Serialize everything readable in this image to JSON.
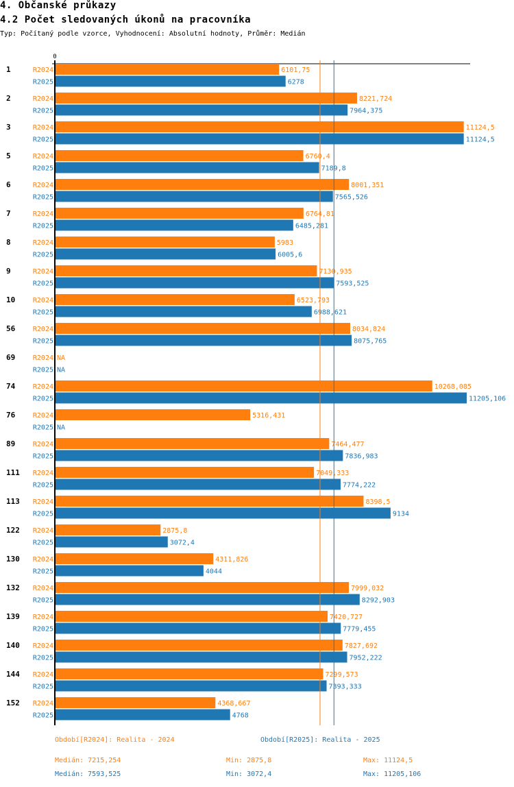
{
  "header": {
    "section_title": "4. Občanské průkazy",
    "chart_title": "4.2 Počet sledovaných úkonů na pracovníka",
    "subtitle": "Typ: Počítaný podle vzorce, Vyhodnocení: Absolutní hodnoty, Průměr: Medián"
  },
  "colors": {
    "R2024": "#ff7f0e",
    "R2025": "#1f77b4",
    "axis": "#000000"
  },
  "chart_data": {
    "type": "bar",
    "orientation": "horizontal",
    "title": "4.2 Počet sledovaných úkonů na pracovníka",
    "xlabel": "",
    "ylabel": "",
    "xlim": [
      0,
      11205.106
    ],
    "x_tick_labels": [
      "0"
    ],
    "grid": false,
    "categories": [
      "1",
      "2",
      "3",
      "5",
      "6",
      "7",
      "8",
      "9",
      "10",
      "56",
      "69",
      "74",
      "76",
      "89",
      "111",
      "113",
      "122",
      "130",
      "132",
      "139",
      "140",
      "144",
      "152"
    ],
    "series": [
      {
        "name": "R2024",
        "label": "Období[R2024]: Realita - 2024",
        "values": [
          6101.75,
          8221.724,
          11124.5,
          6760.4,
          8001.351,
          6764.81,
          5983,
          7130.935,
          6523.793,
          8034.824,
          null,
          10268.085,
          5316.431,
          7464.477,
          7049.333,
          8398.5,
          2875.8,
          4311.826,
          7999.032,
          7420.727,
          7827.692,
          7299.573,
          4368.667
        ],
        "value_labels": [
          "6101,75",
          "8221,724",
          "11124,5",
          "6760,4",
          "8001,351",
          "6764,81",
          "5983",
          "7130,935",
          "6523,793",
          "8034,824",
          "NA",
          "10268,085",
          "5316,431",
          "7464,477",
          "7049,333",
          "8398,5",
          "2875,8",
          "4311,826",
          "7999,032",
          "7420,727",
          "7827,692",
          "7299,573",
          "4368,667"
        ],
        "median": 7215.254,
        "median_label": "Medián: 7215,254",
        "min_label": "Min: 2875,8",
        "max_label": "Max: 11124,5"
      },
      {
        "name": "R2025",
        "label": "Období[R2025]: Realita - 2025",
        "values": [
          6278,
          7964.375,
          11124.5,
          7189.8,
          7565.526,
          6485.281,
          6005.6,
          7593.525,
          6988.621,
          8075.765,
          null,
          11205.106,
          null,
          7836.983,
          7774.222,
          9134,
          3072.4,
          4044,
          8292.903,
          7779.455,
          7952.222,
          7393.333,
          4768
        ],
        "value_labels": [
          "6278",
          "7964,375",
          "11124,5",
          "7189,8",
          "7565,526",
          "6485,281",
          "6005,6",
          "7593,525",
          "6988,621",
          "8075,765",
          "NA",
          "11205,106",
          "NA",
          "7836,983",
          "7774,222",
          "9134",
          "3072,4",
          "4044",
          "8292,903",
          "7779,455",
          "7952,222",
          "7393,333",
          "4768"
        ],
        "median": 7593.525,
        "median_label": "Medián: 7593,525",
        "min_label": "Min: 3072,4",
        "max_label": "Max: 11205,106"
      }
    ],
    "legend": "bottom"
  }
}
